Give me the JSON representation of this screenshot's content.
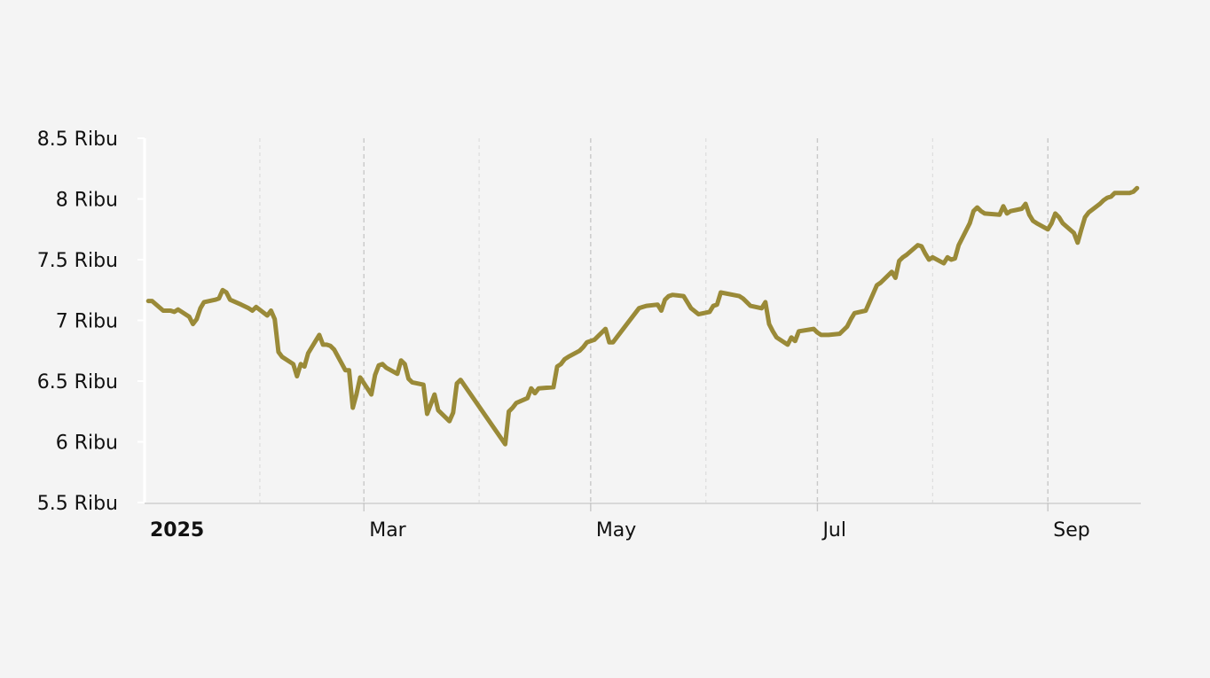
{
  "chart_data": {
    "type": "line",
    "title": "",
    "xlabel": "",
    "ylabel": "",
    "line_color": "#9a8a38",
    "grid": "vertical",
    "ylim": [
      5500,
      8500
    ],
    "y_ticks": [
      {
        "value": 5500,
        "label": "5.5 Ribu"
      },
      {
        "value": 6000,
        "label": "6 Ribu"
      },
      {
        "value": 6500,
        "label": "6.5 Ribu"
      },
      {
        "value": 7000,
        "label": "7 Ribu"
      },
      {
        "value": 7500,
        "label": "7.5 Ribu"
      },
      {
        "value": 8000,
        "label": "8 Ribu"
      },
      {
        "value": 8500,
        "label": "8.5 Ribu"
      }
    ],
    "xlim": [
      "2025-01-01",
      "2025-09-26"
    ],
    "x_ticks": [
      {
        "date": "2025-01-01",
        "label": "2025",
        "bold": true
      },
      {
        "date": "2025-03-01",
        "label": "Mar",
        "bold": false
      },
      {
        "date": "2025-05-01",
        "label": "May",
        "bold": false
      },
      {
        "date": "2025-07-01",
        "label": "Jul",
        "bold": false
      },
      {
        "date": "2025-09-01",
        "label": "Sep",
        "bold": false
      }
    ],
    "minor_grid_dates": [
      "2025-02-01",
      "2025-04-01",
      "2025-06-01",
      "2025-08-01"
    ],
    "series": [
      {
        "dates": [
          "2025-01-02",
          "2025-01-03",
          "2025-01-06",
          "2025-01-08",
          "2025-01-09",
          "2025-01-10",
          "2025-01-13",
          "2025-01-14",
          "2025-01-15",
          "2025-01-16",
          "2025-01-17",
          "2025-01-20",
          "2025-01-21",
          "2025-01-22",
          "2025-01-23",
          "2025-01-24",
          "2025-01-27",
          "2025-01-29",
          "2025-01-30",
          "2025-01-31",
          "2025-02-03",
          "2025-02-04",
          "2025-02-05",
          "2025-02-06",
          "2025-02-07",
          "2025-02-10",
          "2025-02-11",
          "2025-02-12",
          "2025-02-13",
          "2025-02-14",
          "2025-02-17",
          "2025-02-18",
          "2025-02-19",
          "2025-02-20",
          "2025-02-21",
          "2025-02-24",
          "2025-02-25",
          "2025-02-26",
          "2025-02-27",
          "2025-02-28",
          "2025-03-03",
          "2025-03-04",
          "2025-03-05",
          "2025-03-06",
          "2025-03-07",
          "2025-03-10",
          "2025-03-11",
          "2025-03-12",
          "2025-03-13",
          "2025-03-14",
          "2025-03-17",
          "2025-03-18",
          "2025-03-19",
          "2025-03-20",
          "2025-03-21",
          "2025-03-24",
          "2025-03-25",
          "2025-03-26",
          "2025-03-27",
          "2025-04-08",
          "2025-04-09",
          "2025-04-10",
          "2025-04-11",
          "2025-04-14",
          "2025-04-15",
          "2025-04-16",
          "2025-04-17",
          "2025-04-21",
          "2025-04-22",
          "2025-04-23",
          "2025-04-24",
          "2025-04-25",
          "2025-04-28",
          "2025-04-29",
          "2025-04-30",
          "2025-05-02",
          "2025-05-05",
          "2025-05-06",
          "2025-05-07",
          "2025-05-08",
          "2025-05-09",
          "2025-05-14",
          "2025-05-15",
          "2025-05-16",
          "2025-05-19",
          "2025-05-20",
          "2025-05-21",
          "2025-05-22",
          "2025-05-23",
          "2025-05-26",
          "2025-05-27",
          "2025-05-28",
          "2025-05-30",
          "2025-06-02",
          "2025-06-03",
          "2025-06-04",
          "2025-06-05",
          "2025-06-10",
          "2025-06-11",
          "2025-06-12",
          "2025-06-13",
          "2025-06-16",
          "2025-06-17",
          "2025-06-18",
          "2025-06-19",
          "2025-06-20",
          "2025-06-23",
          "2025-06-24",
          "2025-06-25",
          "2025-06-26",
          "2025-06-30",
          "2025-07-01",
          "2025-07-02",
          "2025-07-03",
          "2025-07-04",
          "2025-07-07",
          "2025-07-08",
          "2025-07-09",
          "2025-07-10",
          "2025-07-11",
          "2025-07-14",
          "2025-07-15",
          "2025-07-16",
          "2025-07-17",
          "2025-07-18",
          "2025-07-21",
          "2025-07-22",
          "2025-07-23",
          "2025-07-24",
          "2025-07-25",
          "2025-07-28",
          "2025-07-29",
          "2025-07-30",
          "2025-07-31",
          "2025-08-01",
          "2025-08-04",
          "2025-08-05",
          "2025-08-06",
          "2025-08-07",
          "2025-08-08",
          "2025-08-11",
          "2025-08-12",
          "2025-08-13",
          "2025-08-14",
          "2025-08-15",
          "2025-08-19",
          "2025-08-20",
          "2025-08-21",
          "2025-08-22",
          "2025-08-25",
          "2025-08-26",
          "2025-08-27",
          "2025-08-28",
          "2025-08-29",
          "2025-09-01",
          "2025-09-02",
          "2025-09-03",
          "2025-09-04",
          "2025-09-05",
          "2025-09-08",
          "2025-09-09",
          "2025-09-10",
          "2025-09-11",
          "2025-09-12",
          "2025-09-15",
          "2025-09-16",
          "2025-09-17",
          "2025-09-18",
          "2025-09-19",
          "2025-09-22",
          "2025-09-23",
          "2025-09-24",
          "2025-09-25"
        ],
        "values": [
          7160,
          7160,
          7080,
          7080,
          7070,
          7090,
          7030,
          6970,
          7010,
          7100,
          7150,
          7170,
          7180,
          7250,
          7230,
          7170,
          7130,
          7100,
          7080,
          7110,
          7040,
          7080,
          7010,
          6740,
          6700,
          6640,
          6540,
          6640,
          6620,
          6730,
          6880,
          6800,
          6800,
          6790,
          6760,
          6590,
          6590,
          6280,
          6390,
          6530,
          6390,
          6550,
          6630,
          6640,
          6610,
          6560,
          6670,
          6640,
          6520,
          6490,
          6470,
          6230,
          6310,
          6390,
          6260,
          6170,
          6240,
          6480,
          6510,
          5980,
          6250,
          6280,
          6320,
          6360,
          6440,
          6400,
          6440,
          6450,
          6620,
          6640,
          6680,
          6700,
          6750,
          6780,
          6820,
          6840,
          6930,
          6820,
          6820,
          6860,
          6900,
          7100,
          7110,
          7120,
          7130,
          7080,
          7170,
          7200,
          7210,
          7200,
          7150,
          7100,
          7050,
          7070,
          7120,
          7130,
          7230,
          7200,
          7180,
          7150,
          7120,
          7100,
          7150,
          6970,
          6910,
          6860,
          6800,
          6860,
          6830,
          6910,
          6930,
          6900,
          6880,
          6880,
          6880,
          6890,
          6920,
          6950,
          7010,
          7060,
          7080,
          7150,
          7220,
          7290,
          7310,
          7400,
          7350,
          7490,
          7520,
          7540,
          7620,
          7610,
          7550,
          7500,
          7520,
          7470,
          7520,
          7500,
          7510,
          7620,
          7800,
          7900,
          7930,
          7900,
          7880,
          7870,
          7940,
          7880,
          7900,
          7920,
          7960,
          7870,
          7820,
          7800,
          7750,
          7800,
          7880,
          7850,
          7800,
          7720,
          7640,
          7750,
          7850,
          7890,
          7960,
          7990,
          8010,
          8020,
          8050,
          8050,
          8050,
          8060,
          8090
        ]
      }
    ]
  }
}
